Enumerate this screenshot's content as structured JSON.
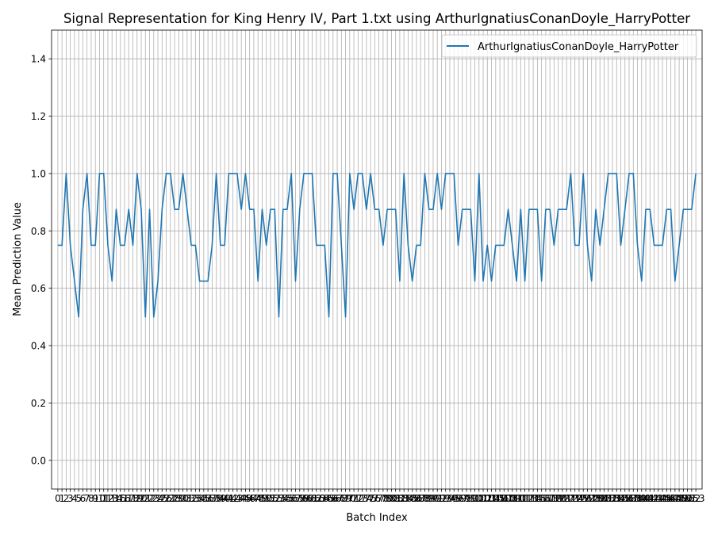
{
  "chart_data": {
    "type": "line",
    "title": "Signal Representation for King Henry IV, Part 1.txt using ArthurIgnatiusConanDoyle_HarryPotter",
    "xlabel": "Batch Index",
    "ylabel": "Mean Prediction Value",
    "ylim": [
      -0.1,
      1.5
    ],
    "xlim": [
      -1.5,
      154.5
    ],
    "y_ticks": [
      "0.0",
      "0.2",
      "0.4",
      "0.6",
      "0.8",
      "1.0",
      "1.2",
      "1.4"
    ],
    "grid": true,
    "legend_position": "top-right",
    "series": [
      {
        "name": "ArthurIgnatiusConanDoyle_HarryPotter",
        "color": "#1f77b4",
        "values": [
          0.75,
          0.75,
          1.0,
          0.75,
          0.625,
          0.5,
          0.875,
          1.0,
          0.75,
          0.75,
          1.0,
          1.0,
          0.75,
          0.625,
          0.875,
          0.75,
          0.75,
          0.875,
          0.75,
          1.0,
          0.875,
          0.5,
          0.875,
          0.5,
          0.625,
          0.875,
          1.0,
          1.0,
          0.875,
          0.875,
          1.0,
          0.875,
          0.75,
          0.75,
          0.625,
          0.625,
          0.625,
          0.75,
          1.0,
          0.75,
          0.75,
          1.0,
          1.0,
          1.0,
          0.875,
          1.0,
          0.875,
          0.875,
          0.625,
          0.875,
          0.75,
          0.875,
          0.875,
          0.5,
          0.875,
          0.875,
          1.0,
          0.625,
          0.875,
          1.0,
          1.0,
          1.0,
          0.75,
          0.75,
          0.75,
          0.5,
          1.0,
          1.0,
          0.75,
          0.5,
          1.0,
          0.875,
          1.0,
          1.0,
          0.875,
          1.0,
          0.875,
          0.875,
          0.75,
          0.875,
          0.875,
          0.875,
          0.625,
          1.0,
          0.75,
          0.625,
          0.75,
          0.75,
          1.0,
          0.875,
          0.875,
          1.0,
          0.875,
          1.0,
          1.0,
          1.0,
          0.75,
          0.875,
          0.875,
          0.875,
          0.625,
          1.0,
          0.625,
          0.75,
          0.625,
          0.75,
          0.75,
          0.75,
          0.875,
          0.75,
          0.625,
          0.875,
          0.625,
          0.875,
          0.875,
          0.875,
          0.625,
          0.875,
          0.875,
          0.75,
          0.875,
          0.875,
          0.875,
          1.0,
          0.75,
          0.75,
          1.0,
          0.75,
          0.625,
          0.875,
          0.75,
          0.875,
          1.0,
          1.0,
          1.0,
          0.75,
          0.875,
          1.0,
          1.0,
          0.75,
          0.625,
          0.875,
          0.875,
          0.75,
          0.75,
          0.75,
          0.875,
          0.875,
          0.625,
          0.75,
          0.875,
          0.875,
          0.875,
          1.0
        ]
      }
    ]
  }
}
